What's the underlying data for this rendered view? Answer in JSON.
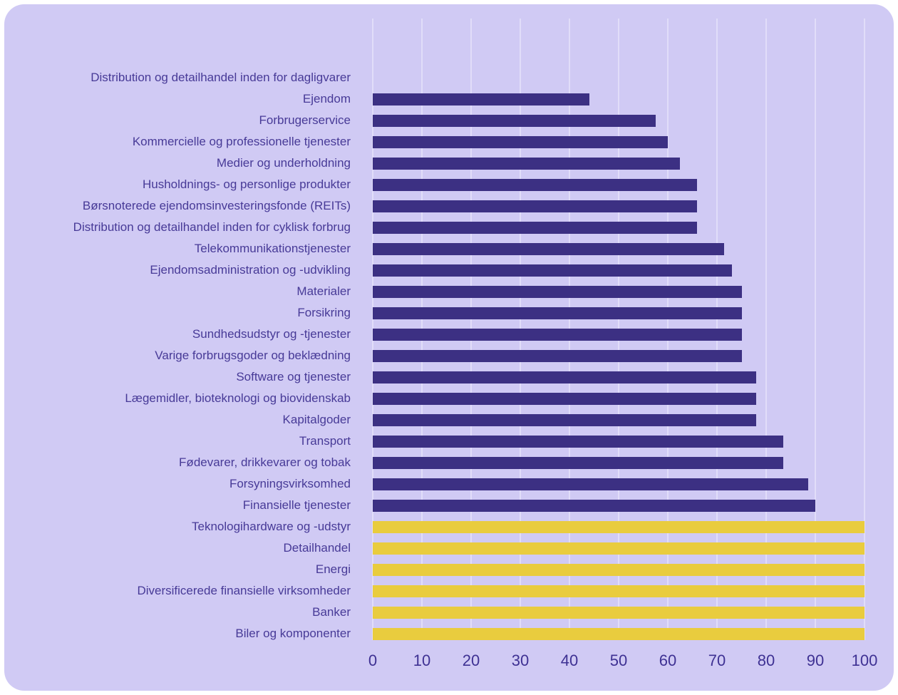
{
  "chart_data": {
    "type": "bar",
    "orientation": "horizontal",
    "title": "",
    "xlabel": "",
    "ylabel": "",
    "xlim": [
      0,
      100
    ],
    "grid": true,
    "legend": "none",
    "background_color": "#d0caf4",
    "gridline_color": "#e1ddf9",
    "label_text_color": "#473a97",
    "tick_text_color": "#3e3193",
    "bar_color_primary": "#3c3083",
    "bar_color_highlight": "#e9cc3e",
    "x_ticks": [
      "0",
      "10",
      "20",
      "30",
      "40",
      "50",
      "60",
      "70",
      "80",
      "90",
      "100"
    ],
    "bars": [
      {
        "label": "Distribution og detailhandel inden for dagligvarer",
        "value": 0,
        "color": "primary"
      },
      {
        "label": "Ejendom",
        "value": 44,
        "color": "primary"
      },
      {
        "label": "Forbrugerservice",
        "value": 57.5,
        "color": "primary"
      },
      {
        "label": "Kommercielle og professionelle tjenester",
        "value": 60,
        "color": "primary"
      },
      {
        "label": "Medier og underholdning",
        "value": 62.5,
        "color": "primary"
      },
      {
        "label": "Husholdnings- og personlige produkter",
        "value": 66,
        "color": "primary"
      },
      {
        "label": "Børsnoterede ejendomsinvesteringsfonde (REITs)",
        "value": 66,
        "color": "primary"
      },
      {
        "label": "Distribution og detailhandel inden for cyklisk forbrug",
        "value": 66,
        "color": "primary"
      },
      {
        "label": "Telekommunikationstjenester",
        "value": 71.5,
        "color": "primary"
      },
      {
        "label": "Ejendomsadministration og -udvikling",
        "value": 73,
        "color": "primary"
      },
      {
        "label": "Materialer",
        "value": 75,
        "color": "primary"
      },
      {
        "label": "Forsikring",
        "value": 75,
        "color": "primary"
      },
      {
        "label": "Sundhedsudstyr og -tjenester",
        "value": 75,
        "color": "primary"
      },
      {
        "label": "Varige forbrugsgoder og beklædning",
        "value": 75,
        "color": "primary"
      },
      {
        "label": "Software og tjenester",
        "value": 78,
        "color": "primary"
      },
      {
        "label": "Lægemidler, bioteknologi og biovidenskab",
        "value": 78,
        "color": "primary"
      },
      {
        "label": "Kapitalgoder",
        "value": 78,
        "color": "primary"
      },
      {
        "label": "Transport",
        "value": 83.5,
        "color": "primary"
      },
      {
        "label": "Fødevarer, drikkevarer og tobak",
        "value": 83.5,
        "color": "primary"
      },
      {
        "label": "Forsyningsvirksomhed",
        "value": 88.5,
        "color": "primary"
      },
      {
        "label": "Finansielle tjenester",
        "value": 90,
        "color": "primary"
      },
      {
        "label": "Teknologihardware og -udstyr",
        "value": 100,
        "color": "highlight"
      },
      {
        "label": "Detailhandel",
        "value": 100,
        "color": "highlight"
      },
      {
        "label": "Energi",
        "value": 100,
        "color": "highlight"
      },
      {
        "label": "Diversificerede finansielle virksomheder",
        "value": 100,
        "color": "highlight"
      },
      {
        "label": "Banker",
        "value": 100,
        "color": "highlight"
      },
      {
        "label": "Biler og komponenter",
        "value": 100,
        "color": "highlight"
      }
    ]
  }
}
